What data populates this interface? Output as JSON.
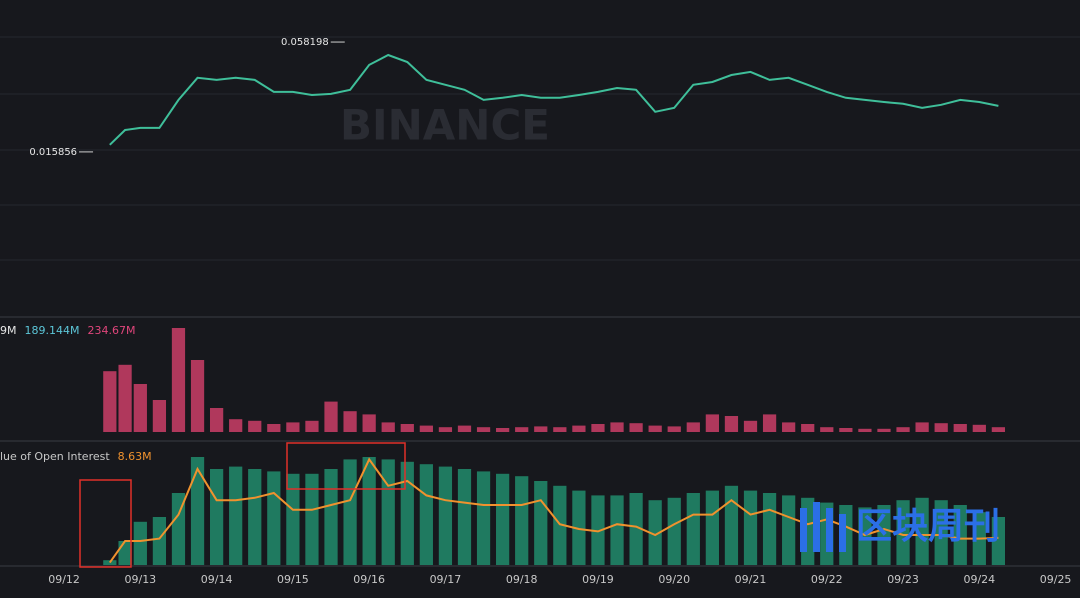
{
  "chart_data": [
    {
      "type": "line",
      "watermark": "BINANCE",
      "x": [
        0.6,
        0.8,
        1.0,
        1.25,
        1.5,
        1.75,
        2.0,
        2.25,
        2.5,
        2.75,
        3.0,
        3.25,
        3.5,
        3.75,
        4.0,
        4.25,
        4.5,
        4.75,
        5.0,
        5.25,
        5.5,
        5.75,
        6.0,
        6.25,
        6.5,
        6.75,
        7.0,
        7.25,
        7.5,
        7.75,
        8.0,
        8.25,
        8.5,
        8.75,
        9.0,
        9.25,
        9.5,
        9.75,
        10.0,
        10.25,
        10.5,
        10.75,
        11.0,
        11.25,
        11.5,
        11.75,
        12.0,
        12.25
      ],
      "series": [
        {
          "color": "#3fbf9a",
          "values": [
            0.0186,
            0.0243,
            0.0251,
            0.0251,
            0.0359,
            0.0444,
            0.0436,
            0.0444,
            0.0436,
            0.039,
            0.039,
            0.0378,
            0.0382,
            0.0398,
            0.0494,
            0.0532,
            0.0505,
            0.0436,
            0.0417,
            0.0398,
            0.0359,
            0.0367,
            0.0378,
            0.0367,
            0.0367,
            0.0378,
            0.039,
            0.0405,
            0.0398,
            0.0313,
            0.0328,
            0.0417,
            0.0428,
            0.0455,
            0.0467,
            0.0436,
            0.0444,
            0.0417,
            0.039,
            0.0367,
            0.0359,
            0.0351,
            0.0344,
            0.0328,
            0.034,
            0.0359,
            0.0351,
            0.0336
          ]
        }
      ],
      "annotations": [
        {
          "label": "0.058198",
          "x": 3.68,
          "value": 0.058198
        },
        {
          "label": "0.015856",
          "x": 0.38,
          "value": 0.015856
        }
      ],
      "xlim": [
        -0.84,
        13.32
      ],
      "ylim": [
        -0.047,
        0.0744
      ]
    },
    {
      "type": "bar",
      "legend": [
        {
          "label": "9M",
          "color": "#e6e6e6"
        },
        {
          "label": "189.144M",
          "color": "#5cc6d8"
        },
        {
          "label": "234.67M",
          "color": "#e0457b"
        }
      ],
      "x": [
        0.6,
        0.8,
        1.0,
        1.25,
        1.5,
        1.75,
        2.0,
        2.25,
        2.5,
        2.75,
        3.0,
        3.25,
        3.5,
        3.75,
        4.0,
        4.25,
        4.5,
        4.75,
        5.0,
        5.25,
        5.5,
        5.75,
        6.0,
        6.25,
        6.5,
        6.75,
        7.0,
        7.25,
        7.5,
        7.75,
        8.0,
        8.25,
        8.5,
        8.75,
        9.0,
        9.25,
        9.5,
        9.75,
        10.0,
        10.25,
        10.5,
        10.75,
        11.0,
        11.25,
        11.5,
        11.75,
        12.0,
        12.25
      ],
      "series": [
        {
          "color": "#b0385c",
          "values": [
            380,
            420,
            300,
            200,
            650,
            450,
            150,
            80,
            70,
            50,
            60,
            70,
            190,
            130,
            110,
            60,
            50,
            40,
            30,
            40,
            30,
            25,
            30,
            35,
            30,
            40,
            50,
            60,
            55,
            40,
            35,
            60,
            110,
            100,
            70,
            110,
            60,
            50,
            30,
            25,
            20,
            20,
            30,
            60,
            55,
            50,
            45,
            30
          ]
        }
      ],
      "xlim": [
        -0.84,
        13.32
      ],
      "ylim": [
        0,
        700
      ]
    },
    {
      "type": "line",
      "legend": [
        {
          "label": "lue of Open Interest",
          "color": "#c8c8c8"
        },
        {
          "label": "8.63M",
          "color": "#f0922e"
        }
      ],
      "x": [
        0.6,
        0.8,
        1.0,
        1.25,
        1.5,
        1.75,
        2.0,
        2.25,
        2.5,
        2.75,
        3.0,
        3.25,
        3.5,
        3.75,
        4.0,
        4.25,
        4.5,
        4.75,
        5.0,
        5.25,
        5.5,
        5.75,
        6.0,
        6.25,
        6.5,
        6.75,
        7.0,
        7.25,
        7.5,
        7.75,
        8.0,
        8.25,
        8.5,
        8.75,
        9.0,
        9.25,
        9.5,
        9.75,
        10.0,
        10.25,
        10.5,
        10.75,
        11.0,
        11.25,
        11.5,
        11.75,
        12.0,
        12.25
      ],
      "bars": {
        "color": "#1f7a60",
        "values": [
          7.7,
          8.5,
          9.3,
          9.5,
          10.5,
          12.0,
          11.5,
          11.6,
          11.5,
          11.4,
          11.3,
          11.3,
          11.5,
          11.9,
          12.0,
          11.9,
          11.8,
          11.7,
          11.6,
          11.5,
          11.4,
          11.3,
          11.2,
          11.0,
          10.8,
          10.6,
          10.4,
          10.4,
          10.5,
          10.2,
          10.3,
          10.5,
          10.6,
          10.8,
          10.6,
          10.5,
          10.4,
          10.3,
          10.1,
          10.0,
          9.9,
          10.0,
          10.2,
          10.3,
          10.2,
          10.0,
          9.7,
          9.5
        ]
      },
      "series": [
        {
          "color": "#f0922e",
          "values": [
            7.6,
            8.5,
            8.5,
            8.6,
            9.6,
            11.5,
            10.2,
            10.2,
            10.3,
            10.5,
            9.8,
            9.8,
            10.0,
            10.2,
            11.9,
            10.8,
            11.0,
            10.4,
            10.2,
            10.1,
            10.0,
            10.0,
            10.0,
            10.2,
            9.2,
            9.0,
            8.9,
            9.2,
            9.1,
            8.75,
            9.2,
            9.6,
            9.6,
            10.2,
            9.6,
            9.8,
            9.5,
            9.2,
            9.4,
            9.1,
            8.75,
            9.0,
            8.75,
            8.75,
            8.75,
            8.6,
            8.6,
            8.63
          ]
        }
      ],
      "xlim": [
        -0.84,
        13.32
      ],
      "ylim": [
        7.5,
        12.5
      ],
      "xticks": [
        {
          "value": 0,
          "label": "09/12"
        },
        {
          "value": 1,
          "label": "09/13"
        },
        {
          "value": 2,
          "label": "09/14"
        },
        {
          "value": 3,
          "label": "09/15"
        },
        {
          "value": 4,
          "label": "09/16"
        },
        {
          "value": 5,
          "label": "09/17"
        },
        {
          "value": 6,
          "label": "09/18"
        },
        {
          "value": 7,
          "label": "09/19"
        },
        {
          "value": 8,
          "label": "09/20"
        },
        {
          "value": 9,
          "label": "09/21"
        },
        {
          "value": 10,
          "label": "09/22"
        },
        {
          "value": 11,
          "label": "09/23"
        },
        {
          "value": 12,
          "label": "09/24"
        },
        {
          "value": 13,
          "label": "09/25"
        }
      ]
    }
  ],
  "logo": "区块周刊"
}
